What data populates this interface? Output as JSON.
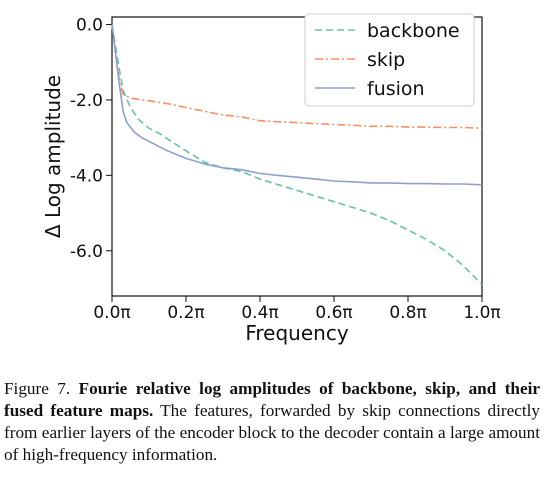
{
  "chart_data": {
    "type": "line",
    "xlabel": "Frequency",
    "ylabel": "Δ Log amplitude",
    "xlim": [
      0.0,
      1.0
    ],
    "ylim": [
      -7.2,
      0.2
    ],
    "x_ticks": [
      0.0,
      0.2,
      0.4,
      0.6,
      0.8,
      1.0
    ],
    "x_tick_labels": [
      "0.0π",
      "0.2π",
      "0.4π",
      "0.6π",
      "0.8π",
      "1.0π"
    ],
    "y_ticks": [
      0.0,
      -2.0,
      -4.0,
      -6.0
    ],
    "y_tick_labels": [
      "0.0",
      "-2.0",
      "-4.0",
      "-6.0"
    ],
    "legend_position": "top-right",
    "grid": false,
    "series": [
      {
        "name": "backbone",
        "color": "#66c2a5",
        "dash": "dashed",
        "x": [
          0.0,
          0.01,
          0.02,
          0.03,
          0.05,
          0.07,
          0.1,
          0.13,
          0.16,
          0.2,
          0.25,
          0.3,
          0.35,
          0.4,
          0.45,
          0.5,
          0.55,
          0.6,
          0.65,
          0.7,
          0.75,
          0.8,
          0.85,
          0.9,
          0.95,
          1.0
        ],
        "y": [
          0.0,
          -0.6,
          -1.2,
          -1.75,
          -2.2,
          -2.5,
          -2.75,
          -2.9,
          -3.1,
          -3.35,
          -3.65,
          -3.8,
          -3.9,
          -4.1,
          -4.25,
          -4.4,
          -4.55,
          -4.7,
          -4.85,
          -5.0,
          -5.2,
          -5.45,
          -5.7,
          -6.0,
          -6.4,
          -6.9
        ]
      },
      {
        "name": "skip",
        "color": "#fc8d62",
        "dash": "dashdot",
        "x": [
          0.0,
          0.01,
          0.02,
          0.03,
          0.05,
          0.08,
          0.1,
          0.15,
          0.2,
          0.25,
          0.3,
          0.35,
          0.4,
          0.45,
          0.5,
          0.55,
          0.6,
          0.65,
          0.7,
          0.75,
          0.8,
          0.85,
          0.9,
          0.95,
          1.0
        ],
        "y": [
          0.0,
          -0.8,
          -1.5,
          -1.85,
          -1.95,
          -2.0,
          -2.02,
          -2.1,
          -2.2,
          -2.3,
          -2.4,
          -2.45,
          -2.55,
          -2.58,
          -2.6,
          -2.63,
          -2.65,
          -2.67,
          -2.7,
          -2.7,
          -2.72,
          -2.72,
          -2.73,
          -2.73,
          -2.75
        ]
      },
      {
        "name": "fusion",
        "color": "#8da0cb",
        "dash": "solid",
        "x": [
          0.0,
          0.01,
          0.02,
          0.03,
          0.04,
          0.06,
          0.08,
          0.1,
          0.15,
          0.2,
          0.25,
          0.3,
          0.35,
          0.4,
          0.45,
          0.5,
          0.55,
          0.6,
          0.65,
          0.7,
          0.75,
          0.8,
          0.85,
          0.9,
          0.95,
          1.0
        ],
        "y": [
          0.0,
          -0.8,
          -1.6,
          -2.3,
          -2.6,
          -2.85,
          -3.0,
          -3.1,
          -3.35,
          -3.55,
          -3.7,
          -3.8,
          -3.85,
          -3.95,
          -4.0,
          -4.05,
          -4.1,
          -4.15,
          -4.17,
          -4.2,
          -4.2,
          -4.22,
          -4.22,
          -4.23,
          -4.23,
          -4.25
        ]
      }
    ]
  },
  "caption": {
    "label": "Figure 7.",
    "bold_text": "Fourie relative log amplitudes of backbone, skip, and their fused feature maps.",
    "body_text": "The features, forwarded by skip connections directly from earlier layers of the encoder block to the decoder contain a large amount of high-frequency information."
  }
}
